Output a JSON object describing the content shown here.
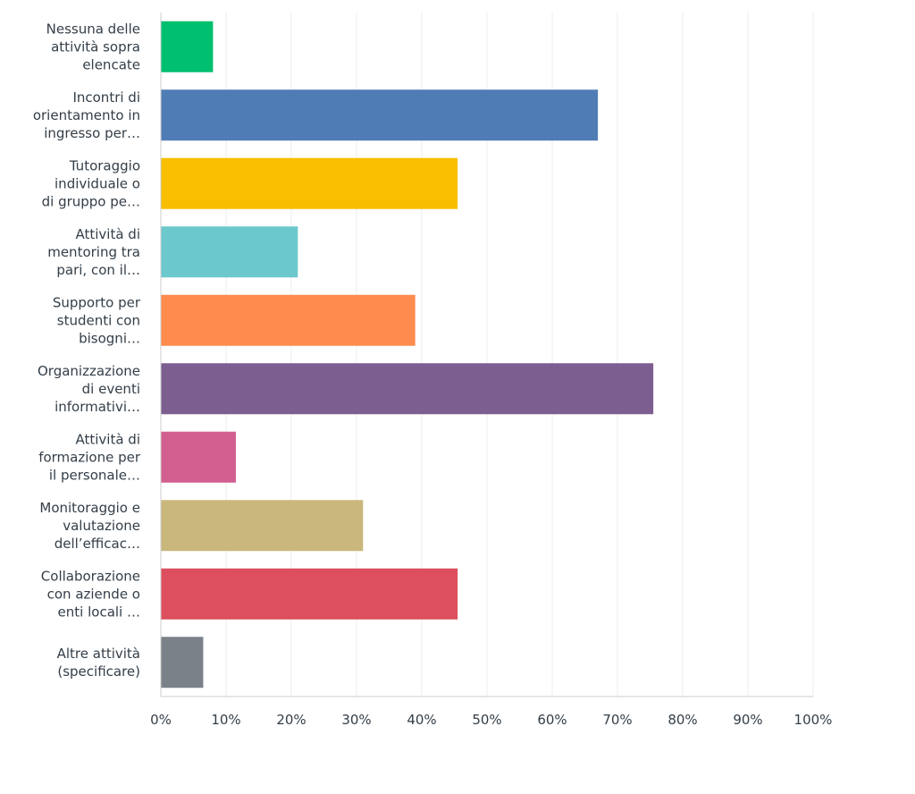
{
  "chart_data": {
    "type": "bar",
    "orientation": "horizontal",
    "categories": [
      [
        "Nessuna delle",
        "attività sopra",
        "elencate"
      ],
      [
        "Incontri di",
        "orientamento in",
        "ingresso per…"
      ],
      [
        "Tutoraggio",
        "individuale o",
        "di gruppo pe…"
      ],
      [
        "Attività di",
        "mentoring tra",
        "pari, con il…"
      ],
      [
        "Supporto per",
        "studenti con",
        "bisogni…"
      ],
      [
        "Organizzazione",
        "di eventi",
        "informativi…"
      ],
      [
        "Attività di",
        "formazione per",
        "il personale…"
      ],
      [
        "Monitoraggio e",
        "valutazione",
        "dell’efficac…"
      ],
      [
        "Collaborazione",
        "con aziende o",
        "enti locali …"
      ],
      [
        "Altre attività",
        "(specificare)"
      ]
    ],
    "values": [
      8,
      67,
      45.5,
      21,
      39,
      75.5,
      11.5,
      31,
      45.5,
      6.5
    ],
    "colors": [
      "#00bf6f",
      "#507cb6",
      "#f9be00",
      "#6bc8cd",
      "#ff8b4f",
      "#7d5e90",
      "#d25f90",
      "#c9b77c",
      "#dd4f5e",
      "#7a8189"
    ],
    "xlim": [
      0,
      100
    ],
    "xticks": [
      "0%",
      "10%",
      "20%",
      "30%",
      "40%",
      "50%",
      "60%",
      "70%",
      "80%",
      "90%",
      "100%"
    ],
    "grid": true
  }
}
